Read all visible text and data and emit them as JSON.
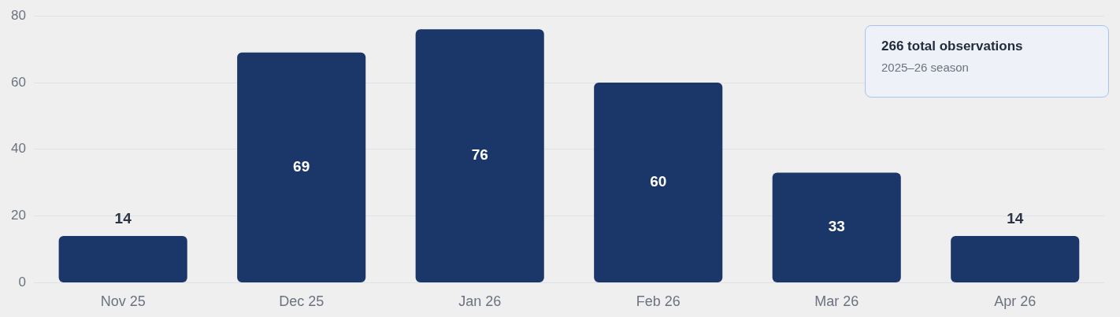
{
  "chart_data": {
    "type": "bar",
    "categories": [
      "Nov 25",
      "Dec 25",
      "Jan 26",
      "Feb 26",
      "Mar 26",
      "Apr 26"
    ],
    "values": [
      14,
      69,
      76,
      60,
      33,
      14
    ],
    "color": "#1b3668",
    "ylim": [
      0,
      80
    ],
    "yticks": [
      0,
      20,
      40,
      60,
      80
    ],
    "grid": "y",
    "data_labels": true,
    "legend": false,
    "annotations": [
      "266 total observations",
      "2025–26 season"
    ]
  }
}
